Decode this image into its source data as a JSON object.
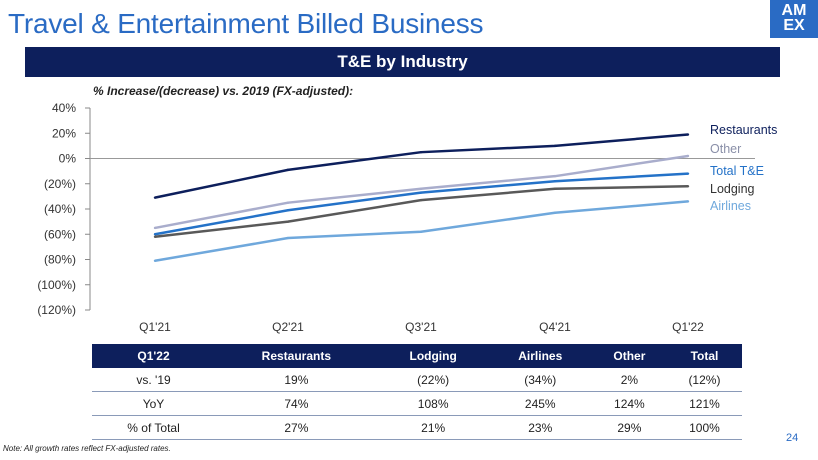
{
  "page_title": "Travel & Entertainment Billed Business",
  "logo_text": "AM EX",
  "banner": "T&E by Industry",
  "subtitle": "% Increase/(decrease) vs. 2019 (FX-adjusted):",
  "chart_data": {
    "type": "line",
    "title": "T&E by Industry",
    "categories": [
      "Q1'21",
      "Q2'21",
      "Q3'21",
      "Q4'21",
      "Q1'22"
    ],
    "y_ticks": [
      "40%",
      "20%",
      "0%",
      "(20%)",
      "(40%)",
      "(60%)",
      "(80%)",
      "(100%)",
      "(120%)"
    ],
    "ylim": [
      -120,
      40
    ],
    "grid": false,
    "legend": "right",
    "series": [
      {
        "name": "Restaurants",
        "color": "#0d1f5c",
        "values": [
          -31,
          -9,
          5,
          10,
          19
        ]
      },
      {
        "name": "Other",
        "color": "#a9adcc",
        "values": [
          -55,
          -35,
          -24,
          -14,
          2
        ]
      },
      {
        "name": "Total T&E",
        "color": "#2472c8",
        "values": [
          -60,
          -41,
          -27,
          -18,
          -12
        ]
      },
      {
        "name": "Lodging",
        "color": "#595959",
        "values": [
          -62,
          -50,
          -33,
          -24,
          -22
        ]
      },
      {
        "name": "Airlines",
        "color": "#6fa8dc",
        "values": [
          -81,
          -63,
          -58,
          -43,
          -34
        ]
      }
    ]
  },
  "table": {
    "headers": [
      "Q1'22",
      "Restaurants",
      "Lodging",
      "Airlines",
      "Other",
      "Total"
    ],
    "rows": [
      [
        "vs. '19",
        "19%",
        "(22%)",
        "(34%)",
        "2%",
        "(12%)"
      ],
      [
        "YoY",
        "74%",
        "108%",
        "245%",
        "124%",
        "121%"
      ],
      [
        "% of Total",
        "27%",
        "21%",
        "23%",
        "29%",
        "100%"
      ]
    ]
  },
  "note": "Note: All growth rates reflect FX-adjusted rates.",
  "page_number": "24"
}
